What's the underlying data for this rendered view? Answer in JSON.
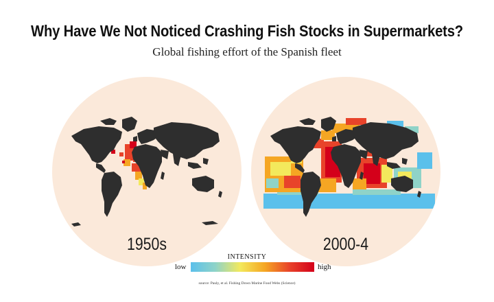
{
  "header": {
    "title": "Why Have We Not Noticed Crashing Fish Stocks in Supermarkets?",
    "subtitle": "Global fishing effort of the Spanish fleet"
  },
  "maps": [
    {
      "label": "1950s"
    },
    {
      "label": "2000-4"
    }
  ],
  "legend": {
    "title": "INTENSITY",
    "low": "low",
    "high": "high",
    "colors": [
      "#5bc0eb",
      "#8fd3c8",
      "#f3e95c",
      "#f5a623",
      "#e8432a",
      "#d4001a"
    ]
  },
  "source": "source: Pauly, et al. Fishing Down Marine Food Webs (Science)",
  "colors": {
    "globe": "#fbe9da",
    "land": "#2e2e2e"
  }
}
